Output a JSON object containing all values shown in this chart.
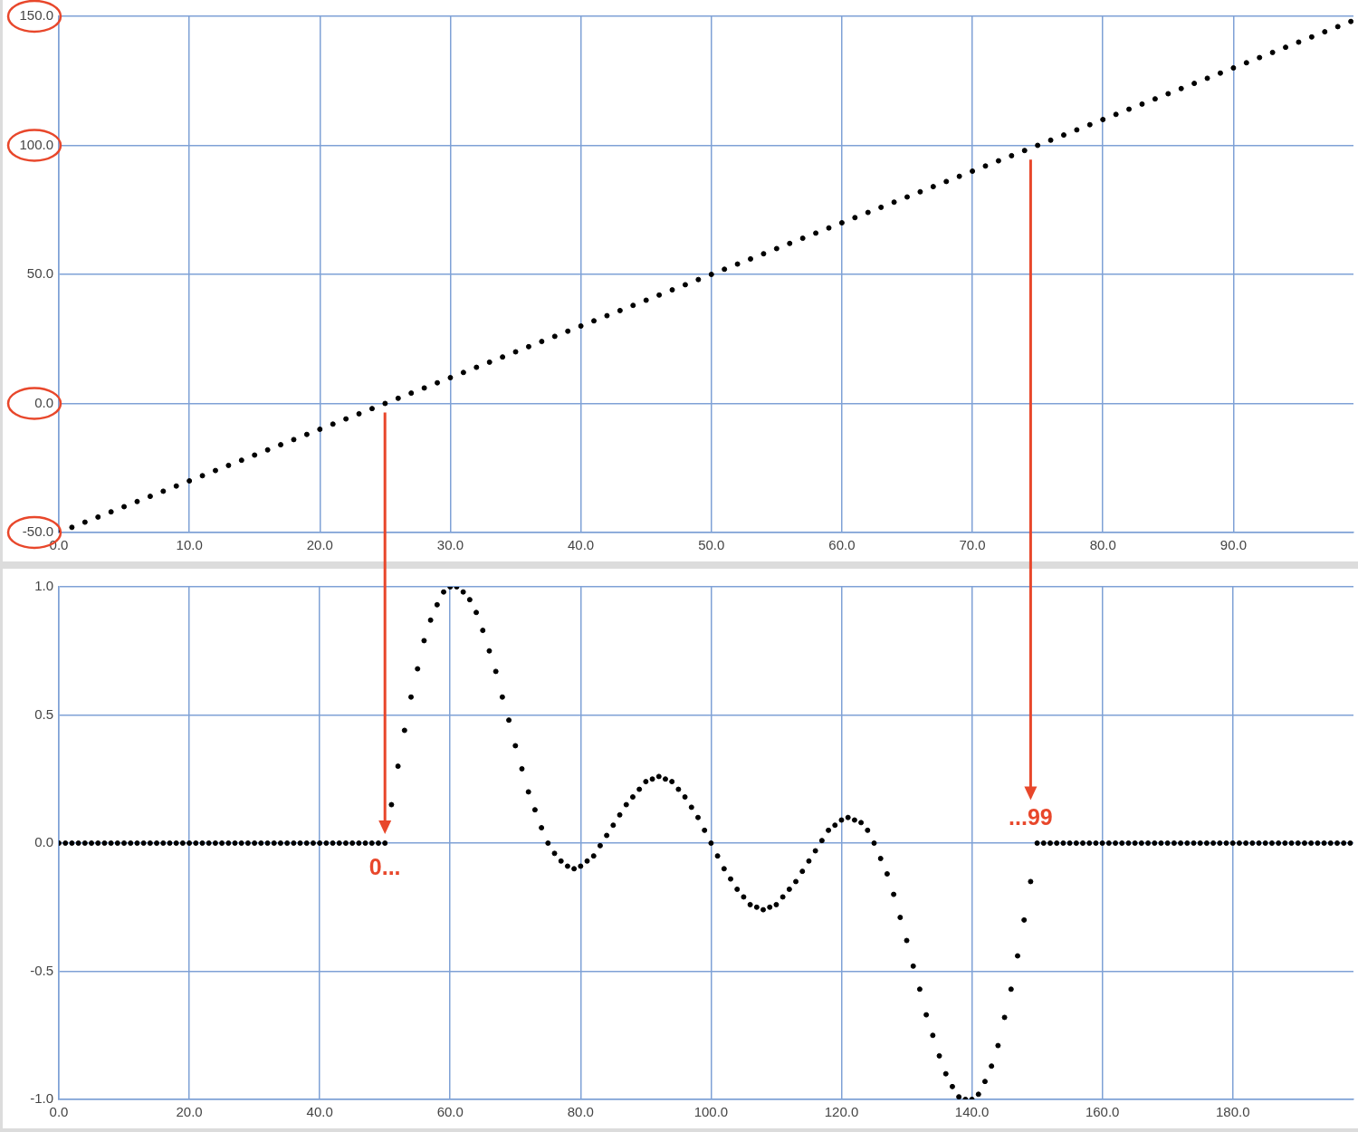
{
  "chart_data": [
    {
      "type": "scatter",
      "color": "#000000",
      "marker": "circle",
      "grid": true,
      "x": [
        0,
        1,
        2,
        3,
        4,
        5,
        6,
        7,
        8,
        9,
        10,
        11,
        12,
        13,
        14,
        15,
        16,
        17,
        18,
        19,
        20,
        21,
        22,
        23,
        24,
        25,
        26,
        27,
        28,
        29,
        30,
        31,
        32,
        33,
        34,
        35,
        36,
        37,
        38,
        39,
        40,
        41,
        42,
        43,
        44,
        45,
        46,
        47,
        48,
        49,
        50,
        51,
        52,
        53,
        54,
        55,
        56,
        57,
        58,
        59,
        60,
        61,
        62,
        63,
        64,
        65,
        66,
        67,
        68,
        69,
        70,
        71,
        72,
        73,
        74,
        75,
        76,
        77,
        78,
        79,
        80,
        81,
        82,
        83,
        84,
        85,
        86,
        87,
        88,
        89,
        90,
        91,
        92,
        93,
        94,
        95,
        96,
        97,
        98,
        99
      ],
      "values": [
        -50,
        -48,
        -46,
        -44,
        -42,
        -40,
        -38,
        -36,
        -34,
        -32,
        -30,
        -28,
        -26,
        -24,
        -22,
        -20,
        -18,
        -16,
        -14,
        -12,
        -10,
        -8,
        -6,
        -4,
        -2,
        0,
        2,
        4,
        6,
        8,
        10,
        12,
        14,
        16,
        18,
        20,
        22,
        24,
        26,
        28,
        30,
        32,
        34,
        36,
        38,
        40,
        42,
        44,
        46,
        48,
        50,
        52,
        54,
        56,
        58,
        60,
        62,
        64,
        66,
        68,
        70,
        72,
        74,
        76,
        78,
        80,
        82,
        84,
        86,
        88,
        90,
        92,
        94,
        96,
        98,
        100,
        102,
        104,
        106,
        108,
        110,
        112,
        114,
        116,
        118,
        120,
        122,
        124,
        126,
        128,
        130,
        132,
        134,
        136,
        138,
        140,
        142,
        144,
        146,
        148
      ],
      "xlim": [
        0,
        99.2
      ],
      "xticks": [
        {
          "value": 0,
          "label": "0.0"
        },
        {
          "value": 10,
          "label": "10.0"
        },
        {
          "value": 20,
          "label": "20.0"
        },
        {
          "value": 30,
          "label": "30.0"
        },
        {
          "value": 40,
          "label": "40.0"
        },
        {
          "value": 50,
          "label": "50.0"
        },
        {
          "value": 60,
          "label": "60.0"
        },
        {
          "value": 70,
          "label": "70.0"
        },
        {
          "value": 80,
          "label": "80.0"
        },
        {
          "value": 90,
          "label": "90.0"
        }
      ],
      "ylim": [
        -50,
        150
      ],
      "yticks": [
        {
          "value": -50,
          "label": "-50.0"
        },
        {
          "value": 0,
          "label": "0.0"
        },
        {
          "value": 50,
          "label": "50.0"
        },
        {
          "value": 100,
          "label": "100.0"
        },
        {
          "value": 150,
          "label": "150.0"
        }
      ]
    },
    {
      "type": "scatter",
      "color": "#000000",
      "marker": "circle",
      "grid": true,
      "x": [
        0,
        1,
        2,
        3,
        4,
        5,
        6,
        7,
        8,
        9,
        10,
        11,
        12,
        13,
        14,
        15,
        16,
        17,
        18,
        19,
        20,
        21,
        22,
        23,
        24,
        25,
        26,
        27,
        28,
        29,
        30,
        31,
        32,
        33,
        34,
        35,
        36,
        37,
        38,
        39,
        40,
        41,
        42,
        43,
        44,
        45,
        46,
        47,
        48,
        49,
        50,
        51,
        52,
        53,
        54,
        55,
        56,
        57,
        58,
        59,
        60,
        61,
        62,
        63,
        64,
        65,
        66,
        67,
        68,
        69,
        70,
        71,
        72,
        73,
        74,
        75,
        76,
        77,
        78,
        79,
        80,
        81,
        82,
        83,
        84,
        85,
        86,
        87,
        88,
        89,
        90,
        91,
        92,
        93,
        94,
        95,
        96,
        97,
        98,
        99,
        100,
        101,
        102,
        103,
        104,
        105,
        106,
        107,
        108,
        109,
        110,
        111,
        112,
        113,
        114,
        115,
        116,
        117,
        118,
        119,
        120,
        121,
        122,
        123,
        124,
        125,
        126,
        127,
        128,
        129,
        130,
        131,
        132,
        133,
        134,
        135,
        136,
        137,
        138,
        139,
        140,
        141,
        142,
        143,
        144,
        145,
        146,
        147,
        148,
        149,
        150,
        151,
        152,
        153,
        154,
        155,
        156,
        157,
        158,
        159,
        160,
        161,
        162,
        163,
        164,
        165,
        166,
        167,
        168,
        169,
        170,
        171,
        172,
        173,
        174,
        175,
        176,
        177,
        178,
        179,
        180,
        181,
        182,
        183,
        184,
        185,
        186,
        187,
        188,
        189,
        190,
        191,
        192,
        193,
        194,
        195,
        196,
        197,
        198
      ],
      "values": [
        0,
        0,
        0,
        0,
        0,
        0,
        0,
        0,
        0,
        0,
        0,
        0,
        0,
        0,
        0,
        0,
        0,
        0,
        0,
        0,
        0,
        0,
        0,
        0,
        0,
        0,
        0,
        0,
        0,
        0,
        0,
        0,
        0,
        0,
        0,
        0,
        0,
        0,
        0,
        0,
        0,
        0,
        0,
        0,
        0,
        0,
        0,
        0,
        0,
        0,
        0,
        0.15,
        0.3,
        0.44,
        0.57,
        0.68,
        0.79,
        0.87,
        0.93,
        0.98,
        1.0,
        1.0,
        0.98,
        0.95,
        0.9,
        0.83,
        0.75,
        0.67,
        0.57,
        0.48,
        0.38,
        0.29,
        0.2,
        0.13,
        0.06,
        0.0,
        -0.04,
        -0.07,
        -0.09,
        -0.1,
        -0.09,
        -0.07,
        -0.05,
        -0.01,
        0.03,
        0.07,
        0.11,
        0.15,
        0.18,
        0.21,
        0.24,
        0.25,
        0.26,
        0.25,
        0.24,
        0.21,
        0.18,
        0.14,
        0.1,
        0.05,
        0.0,
        -0.05,
        -0.1,
        -0.14,
        -0.18,
        -0.21,
        -0.24,
        -0.25,
        -0.26,
        -0.25,
        -0.24,
        -0.21,
        -0.18,
        -0.15,
        -0.11,
        -0.07,
        -0.03,
        0.01,
        0.05,
        0.07,
        0.09,
        0.1,
        0.09,
        0.08,
        0.05,
        0.0,
        -0.06,
        -0.12,
        -0.2,
        -0.29,
        -0.38,
        -0.48,
        -0.57,
        -0.67,
        -0.75,
        -0.83,
        -0.9,
        -0.95,
        -0.99,
        -1.0,
        -1.0,
        -0.98,
        -0.93,
        -0.87,
        -0.79,
        -0.68,
        -0.57,
        -0.44,
        -0.3,
        -0.15,
        0,
        0,
        0,
        0,
        0,
        0,
        0,
        0,
        0,
        0,
        0,
        0,
        0,
        0,
        0,
        0,
        0,
        0,
        0,
        0,
        0,
        0,
        0,
        0,
        0,
        0,
        0,
        0,
        0,
        0,
        0,
        0,
        0,
        0,
        0,
        0,
        0,
        0,
        0,
        0,
        0,
        0,
        0,
        0,
        0,
        0,
        0,
        0,
        0
      ],
      "xlim": [
        0,
        198.5
      ],
      "xticks": [
        {
          "value": 0,
          "label": "0.0"
        },
        {
          "value": 20,
          "label": "20.0"
        },
        {
          "value": 40,
          "label": "40.0"
        },
        {
          "value": 60,
          "label": "60.0"
        },
        {
          "value": 80,
          "label": "80.0"
        },
        {
          "value": 100,
          "label": "100.0"
        },
        {
          "value": 120,
          "label": "120.0"
        },
        {
          "value": 140,
          "label": "140.0"
        },
        {
          "value": 160,
          "label": "160.0"
        },
        {
          "value": 180,
          "label": "180.0"
        }
      ],
      "ylim": [
        -1,
        1
      ],
      "yticks": [
        {
          "value": -1,
          "label": "-1.0"
        },
        {
          "value": -0.5,
          "label": "-0.5"
        },
        {
          "value": 0,
          "label": "0.0"
        },
        {
          "value": 0.5,
          "label": "0.5"
        },
        {
          "value": 1,
          "label": "1.0"
        }
      ],
      "annotations": [
        {
          "text": "0...",
          "x": 50,
          "y": 0
        },
        {
          "text": "...99",
          "x": 149,
          "y": -0.15
        }
      ]
    }
  ]
}
